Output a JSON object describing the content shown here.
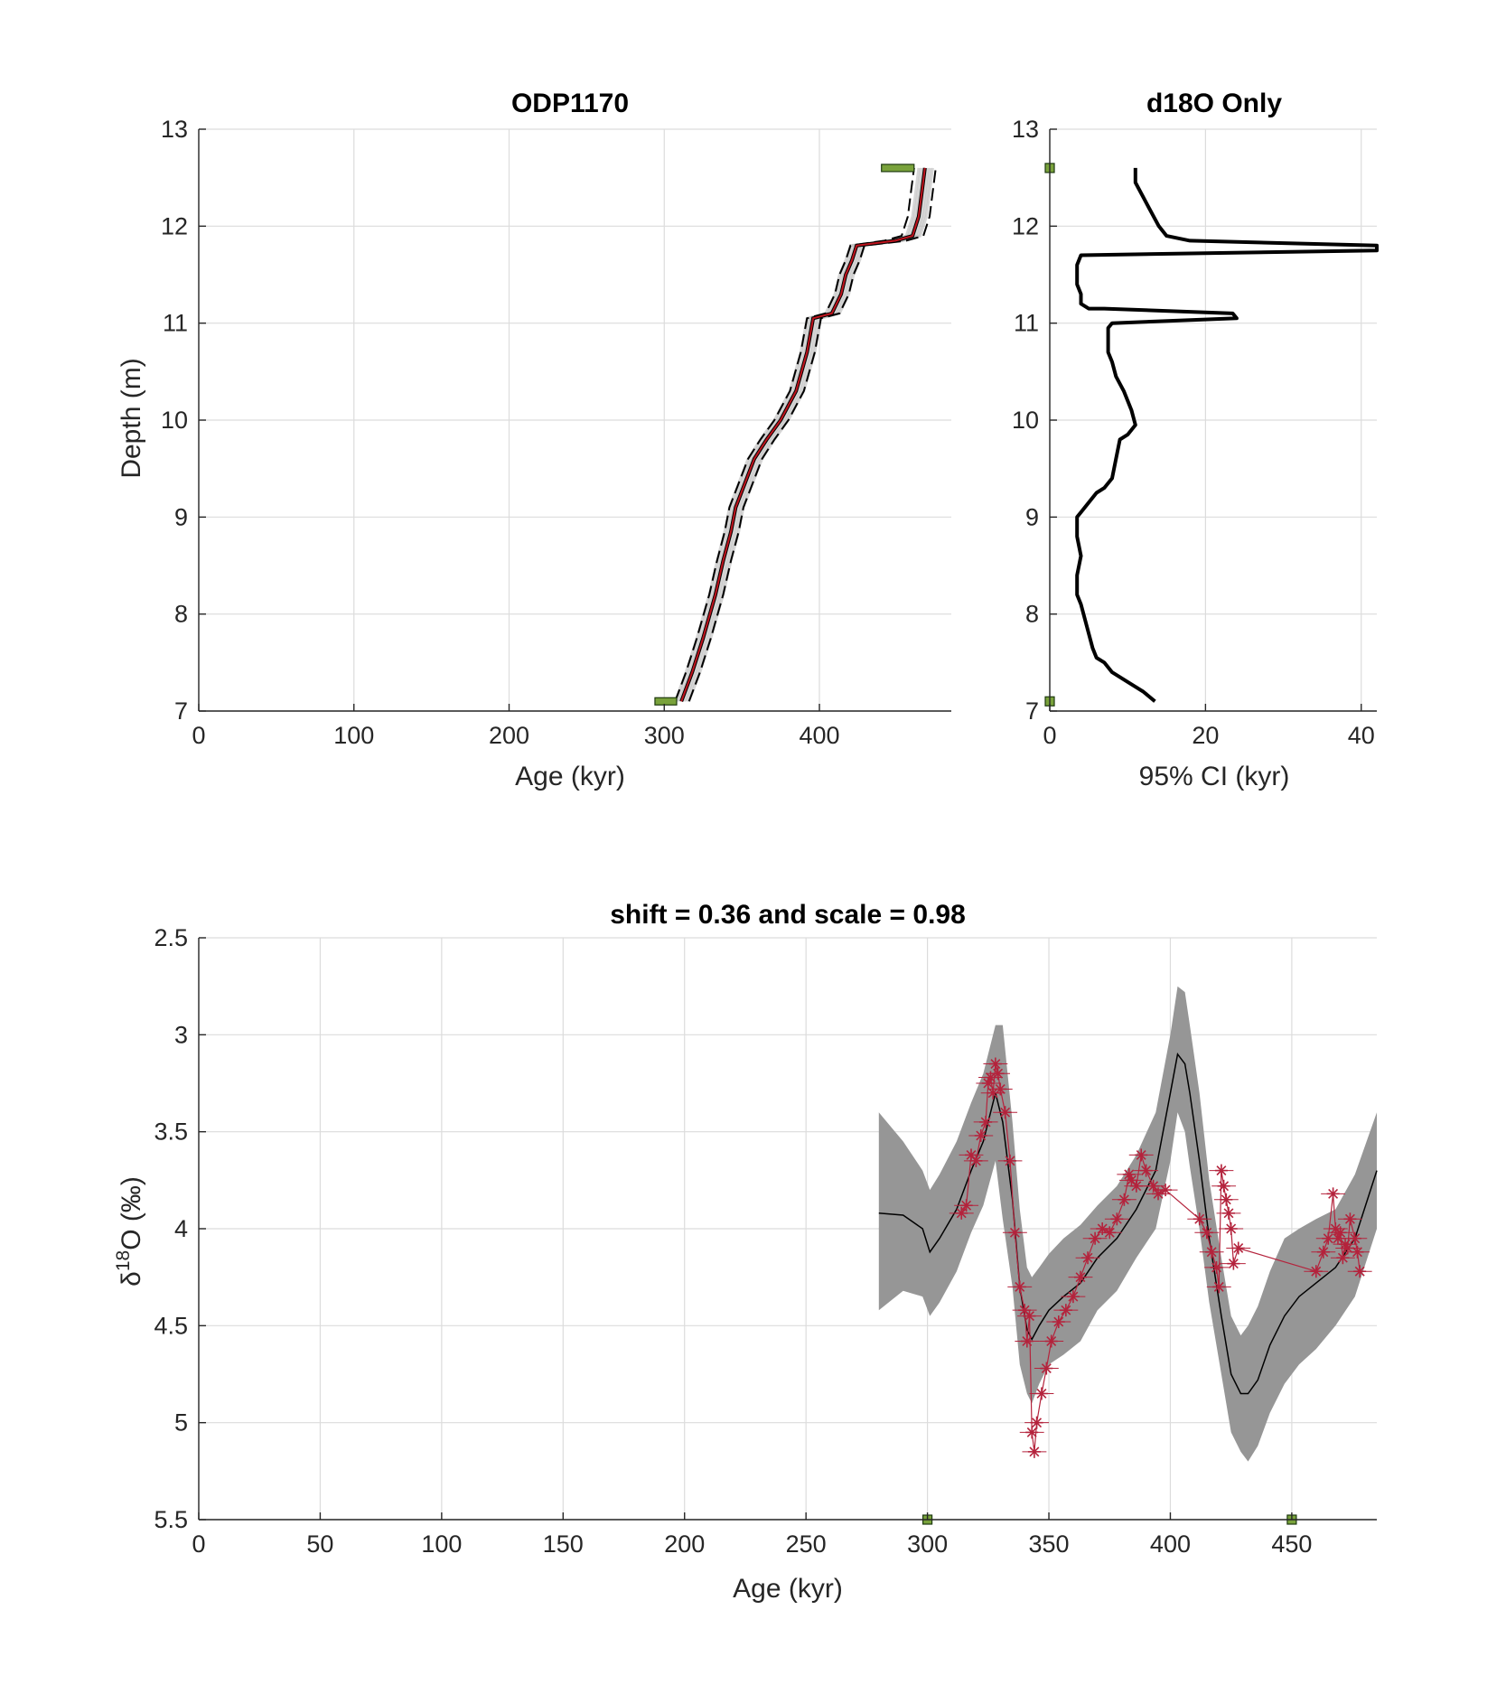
{
  "chart_data": [
    {
      "id": "age_depth",
      "type": "line",
      "title": "ODP1170",
      "xlabel": "Age (kyr)",
      "ylabel": "Depth (m)",
      "xlim": [
        0,
        485
      ],
      "ylim": [
        7,
        13
      ],
      "y_reversed": false,
      "xticks": [
        0,
        100,
        200,
        300,
        400
      ],
      "yticks": [
        7,
        8,
        9,
        10,
        11,
        12,
        13
      ],
      "grid": true,
      "ensemble_color": "#b4b4b4",
      "median_color": "#c0141e",
      "bounds_color": "#000000",
      "tiepoint_color": "#79a23b",
      "median": {
        "x": [
          311,
          318,
          325,
          333,
          338,
          343,
          346,
          352,
          358,
          366,
          375,
          385,
          392,
          396,
          408,
          414,
          417,
          421,
          424,
          449,
          460,
          464,
          466,
          468
        ],
        "y": [
          7.1,
          7.4,
          7.75,
          8.2,
          8.55,
          8.85,
          9.1,
          9.35,
          9.6,
          9.8,
          10.0,
          10.3,
          10.7,
          11.05,
          11.1,
          11.3,
          11.5,
          11.65,
          11.8,
          11.85,
          11.9,
          12.1,
          12.35,
          12.6
        ]
      },
      "upper_bound": {
        "x": [
          316,
          323,
          330,
          338,
          343,
          348,
          351,
          357,
          363,
          371,
          380,
          390,
          397,
          401,
          413,
          419,
          422,
          426,
          429,
          456,
          467,
          471,
          473,
          475
        ],
        "y": [
          7.1,
          7.4,
          7.75,
          8.2,
          8.55,
          8.85,
          9.1,
          9.35,
          9.6,
          9.8,
          10.0,
          10.3,
          10.7,
          11.05,
          11.1,
          11.3,
          11.5,
          11.65,
          11.8,
          11.85,
          11.9,
          12.1,
          12.35,
          12.6
        ]
      },
      "lower_bound": {
        "x": [
          307,
          314,
          321,
          329,
          334,
          339,
          342,
          348,
          354,
          362,
          371,
          381,
          388,
          392,
          404,
          410,
          413,
          417,
          420,
          442,
          453,
          457,
          459,
          461
        ],
        "y": [
          7.1,
          7.4,
          7.75,
          8.2,
          8.55,
          8.85,
          9.1,
          9.35,
          9.6,
          9.8,
          10.0,
          10.3,
          10.7,
          11.05,
          11.1,
          11.3,
          11.5,
          11.65,
          11.8,
          11.85,
          11.9,
          12.1,
          12.35,
          12.6
        ]
      },
      "tiepoints": [
        {
          "x0": 294,
          "x1": 308,
          "y": 7.1
        },
        {
          "x0": 440,
          "x1": 461,
          "y": 12.6
        }
      ]
    },
    {
      "id": "ci_width",
      "type": "line",
      "title": "d18O Only",
      "xlabel": "95% CI (kyr)",
      "ylabel": "",
      "xlim": [
        0,
        42
      ],
      "ylim": [
        7,
        13
      ],
      "xticks": [
        0,
        20,
        40
      ],
      "yticks": [
        7,
        8,
        9,
        10,
        11,
        12,
        13
      ],
      "grid": true,
      "line_color": "#000000",
      "tiepoint_color": "#79a23b",
      "series": [
        {
          "x": [
            13.5,
            12,
            10,
            8,
            7,
            6,
            5.5,
            5,
            4.5,
            4,
            3.5,
            3.5,
            4,
            3.5,
            3.5,
            3.5,
            4,
            4.5,
            5,
            6,
            7,
            8,
            8.5,
            9,
            10,
            11,
            10.5,
            10,
            9.5,
            8.5,
            8,
            7.5,
            7.5,
            7.5,
            7.5,
            8,
            24,
            23.5,
            7,
            5,
            4,
            4,
            3.5,
            3.5,
            4,
            42,
            42,
            18,
            15,
            14,
            13,
            12,
            11,
            11
          ],
          "y": [
            7.1,
            7.2,
            7.3,
            7.4,
            7.5,
            7.55,
            7.65,
            7.8,
            7.95,
            8.1,
            8.2,
            8.4,
            8.6,
            8.8,
            8.9,
            9.0,
            9.05,
            9.1,
            9.15,
            9.25,
            9.3,
            9.4,
            9.6,
            9.8,
            9.85,
            9.95,
            10.1,
            10.2,
            10.3,
            10.45,
            10.6,
            10.7,
            10.8,
            10.9,
            10.95,
            11.0,
            11.05,
            11.1,
            11.15,
            11.15,
            11.2,
            11.3,
            11.4,
            11.6,
            11.7,
            11.75,
            11.8,
            11.85,
            11.9,
            12.0,
            12.15,
            12.3,
            12.45,
            12.6
          ]
        }
      ],
      "tiepoints": [
        {
          "x": 0,
          "y": 7.1
        },
        {
          "x": 0,
          "y": 12.6
        }
      ]
    },
    {
      "id": "d18o_alignment",
      "type": "line",
      "title": "shift = 0.36 and scale = 0.98",
      "xlabel": "Age (kyr)",
      "ylabel_base": "δ",
      "ylabel_sup": "18",
      "ylabel_rest": "O (‰)",
      "xlim": [
        0,
        485
      ],
      "ylim": [
        2.5,
        5.5
      ],
      "y_reversed": true,
      "xticks": [
        0,
        50,
        100,
        150,
        200,
        250,
        300,
        350,
        400,
        450
      ],
      "yticks": [
        2.5,
        3,
        3.5,
        4,
        4.5,
        5,
        5.5
      ],
      "grid": true,
      "band_color": "#969696",
      "stack_color": "#000000",
      "obs_color": "#b4233c",
      "tiepoint_color": "#79a23b",
      "stack": {
        "x": [
          280,
          290,
          298,
          301,
          305,
          312,
          318,
          323,
          328,
          331,
          335,
          338,
          341,
          343,
          346,
          350,
          356,
          363,
          370,
          378,
          386,
          394,
          400,
          403,
          406,
          408,
          412,
          416,
          421,
          425,
          429,
          432,
          436,
          441,
          447,
          453,
          460,
          468,
          476,
          485
        ],
        "y": [
          3.92,
          3.93,
          4.0,
          4.12,
          4.05,
          3.9,
          3.7,
          3.55,
          3.3,
          3.45,
          3.85,
          4.3,
          4.52,
          4.57,
          4.5,
          4.42,
          4.35,
          4.28,
          4.15,
          4.05,
          3.9,
          3.7,
          3.3,
          3.1,
          3.15,
          3.3,
          3.65,
          4.05,
          4.45,
          4.75,
          4.85,
          4.85,
          4.78,
          4.6,
          4.45,
          4.35,
          4.28,
          4.2,
          4.05,
          3.7
        ]
      },
      "band_upper": {
        "x": [
          280,
          290,
          298,
          301,
          305,
          312,
          318,
          323,
          328,
          331,
          335,
          338,
          341,
          343,
          346,
          350,
          356,
          363,
          370,
          378,
          386,
          394,
          400,
          403,
          406,
          408,
          412,
          416,
          421,
          425,
          429,
          432,
          436,
          441,
          447,
          453,
          460,
          468,
          476,
          485
        ],
        "y": [
          3.4,
          3.55,
          3.7,
          3.8,
          3.72,
          3.55,
          3.35,
          3.2,
          2.95,
          2.95,
          3.45,
          3.9,
          4.2,
          4.25,
          4.2,
          4.13,
          4.05,
          3.98,
          3.88,
          3.78,
          3.62,
          3.4,
          3.0,
          2.75,
          2.78,
          2.95,
          3.3,
          3.75,
          4.15,
          4.45,
          4.55,
          4.5,
          4.4,
          4.22,
          4.05,
          4.0,
          3.95,
          3.9,
          3.72,
          3.4
        ]
      },
      "band_lower": {
        "x": [
          280,
          290,
          298,
          301,
          305,
          312,
          318,
          323,
          328,
          331,
          335,
          338,
          341,
          343,
          346,
          350,
          356,
          363,
          370,
          378,
          386,
          394,
          400,
          403,
          406,
          408,
          412,
          416,
          421,
          425,
          429,
          432,
          436,
          441,
          447,
          453,
          460,
          468,
          476,
          485
        ],
        "y": [
          4.42,
          4.32,
          4.35,
          4.45,
          4.38,
          4.22,
          4.02,
          3.88,
          3.65,
          3.95,
          4.3,
          4.7,
          4.85,
          4.9,
          4.8,
          4.7,
          4.65,
          4.58,
          4.42,
          4.32,
          4.15,
          4.0,
          3.65,
          3.4,
          3.5,
          3.68,
          4.0,
          4.38,
          4.75,
          5.05,
          5.15,
          5.2,
          5.12,
          4.95,
          4.8,
          4.7,
          4.62,
          4.5,
          4.35,
          4.0
        ]
      },
      "observations": {
        "x": [
          314,
          316,
          318,
          320,
          322,
          324,
          325,
          326,
          327,
          328,
          329,
          330,
          332,
          334,
          336,
          338,
          340,
          341,
          342,
          343,
          344,
          345,
          347,
          349,
          351,
          354,
          357,
          360,
          363,
          366,
          369,
          372,
          375,
          378,
          381,
          383,
          384,
          386,
          388,
          390,
          393,
          395,
          398,
          412,
          415,
          417,
          419,
          420,
          421,
          422,
          423,
          424,
          425,
          426,
          428,
          460,
          463,
          465,
          467,
          468,
          469,
          470,
          471,
          472,
          473,
          474,
          476,
          477,
          478
        ],
        "y": [
          3.92,
          3.88,
          3.62,
          3.65,
          3.52,
          3.45,
          3.25,
          3.22,
          3.3,
          3.15,
          3.2,
          3.28,
          3.4,
          3.65,
          4.02,
          4.3,
          4.42,
          4.58,
          4.45,
          5.05,
          5.15,
          5.0,
          4.85,
          4.72,
          4.58,
          4.48,
          4.42,
          4.35,
          4.25,
          4.15,
          4.05,
          4.0,
          4.02,
          3.95,
          3.85,
          3.72,
          3.75,
          3.78,
          3.62,
          3.7,
          3.78,
          3.82,
          3.8,
          3.95,
          4.02,
          4.12,
          4.2,
          4.3,
          3.7,
          3.78,
          3.85,
          3.92,
          4.0,
          4.18,
          4.1,
          4.22,
          4.12,
          4.05,
          3.82,
          4.0,
          4.05,
          4.02,
          4.15,
          4.08,
          4.1,
          3.95,
          4.05,
          4.12,
          4.22
        ]
      },
      "tiepoints": [
        {
          "x": 300,
          "y": 5.5
        },
        {
          "x": 450,
          "y": 5.5
        }
      ]
    }
  ]
}
